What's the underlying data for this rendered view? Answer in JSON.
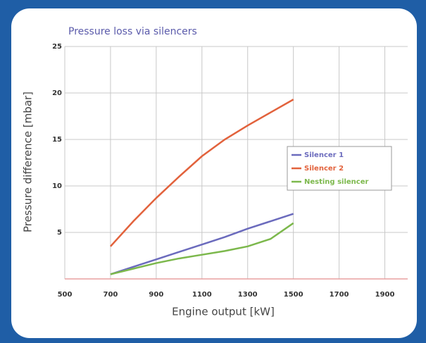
{
  "chart_data": {
    "type": "line",
    "title": "Pressure loss via silencers",
    "x_label": "Engine output [kW]",
    "y_label": "Pressure difference [mbar]",
    "x": [
      700,
      800,
      900,
      1000,
      1100,
      1200,
      1300,
      1400,
      1500
    ],
    "series": [
      {
        "name": "Silencer 1",
        "color": "#6b6bbd",
        "values": [
          0.5,
          1.3,
          2.1,
          2.9,
          3.7,
          4.5,
          5.4,
          6.2,
          7.0
        ]
      },
      {
        "name": "Silencer 2",
        "color": "#e2623c",
        "values": [
          3.5,
          6.2,
          8.7,
          11.0,
          13.2,
          15.0,
          16.5,
          17.9,
          19.3
        ]
      },
      {
        "name": "Nesting silencer",
        "color": "#7cb84c",
        "values": [
          0.5,
          1.1,
          1.7,
          2.2,
          2.6,
          3.0,
          3.5,
          4.3,
          6.0
        ]
      }
    ],
    "xlim": [
      500,
      2000
    ],
    "xticks": [
      500,
      700,
      900,
      1100,
      1300,
      1500,
      1700,
      1900
    ],
    "ylim": [
      0,
      25
    ],
    "yticks": [
      5,
      10,
      15,
      20,
      25
    ],
    "grid": true,
    "legend": "right"
  }
}
